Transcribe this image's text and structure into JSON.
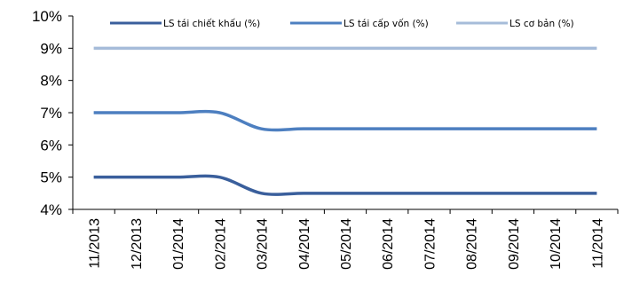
{
  "chart_data": {
    "type": "line",
    "categories": [
      "11/2013",
      "12/2013",
      "01/2014",
      "02/2014",
      "03/2014",
      "04/2014",
      "05/2014",
      "06/2014",
      "07/2014",
      "08/2014",
      "09/2014",
      "10/2014",
      "11/2014"
    ],
    "ylim": [
      4,
      10
    ],
    "yticks": [
      "4%",
      "5%",
      "6%",
      "7%",
      "8%",
      "9%",
      "10%"
    ],
    "grid": false,
    "legend_position": "top",
    "series": [
      {
        "name": "LS tái chiết khấu (%)",
        "color": "#3a5f9c",
        "values": [
          5,
          5,
          5,
          5,
          4.5,
          4.5,
          4.5,
          4.5,
          4.5,
          4.5,
          4.5,
          4.5,
          4.5
        ]
      },
      {
        "name": "LS tái cấp vốn  (%)",
        "color": "#4d7fc0",
        "values": [
          7,
          7,
          7,
          7,
          6.5,
          6.5,
          6.5,
          6.5,
          6.5,
          6.5,
          6.5,
          6.5,
          6.5
        ]
      },
      {
        "name": "LS cơ bản (%)",
        "color": "#a6bcd9",
        "values": [
          9,
          9,
          9,
          9,
          9,
          9,
          9,
          9,
          9,
          9,
          9,
          9,
          9
        ]
      }
    ]
  }
}
